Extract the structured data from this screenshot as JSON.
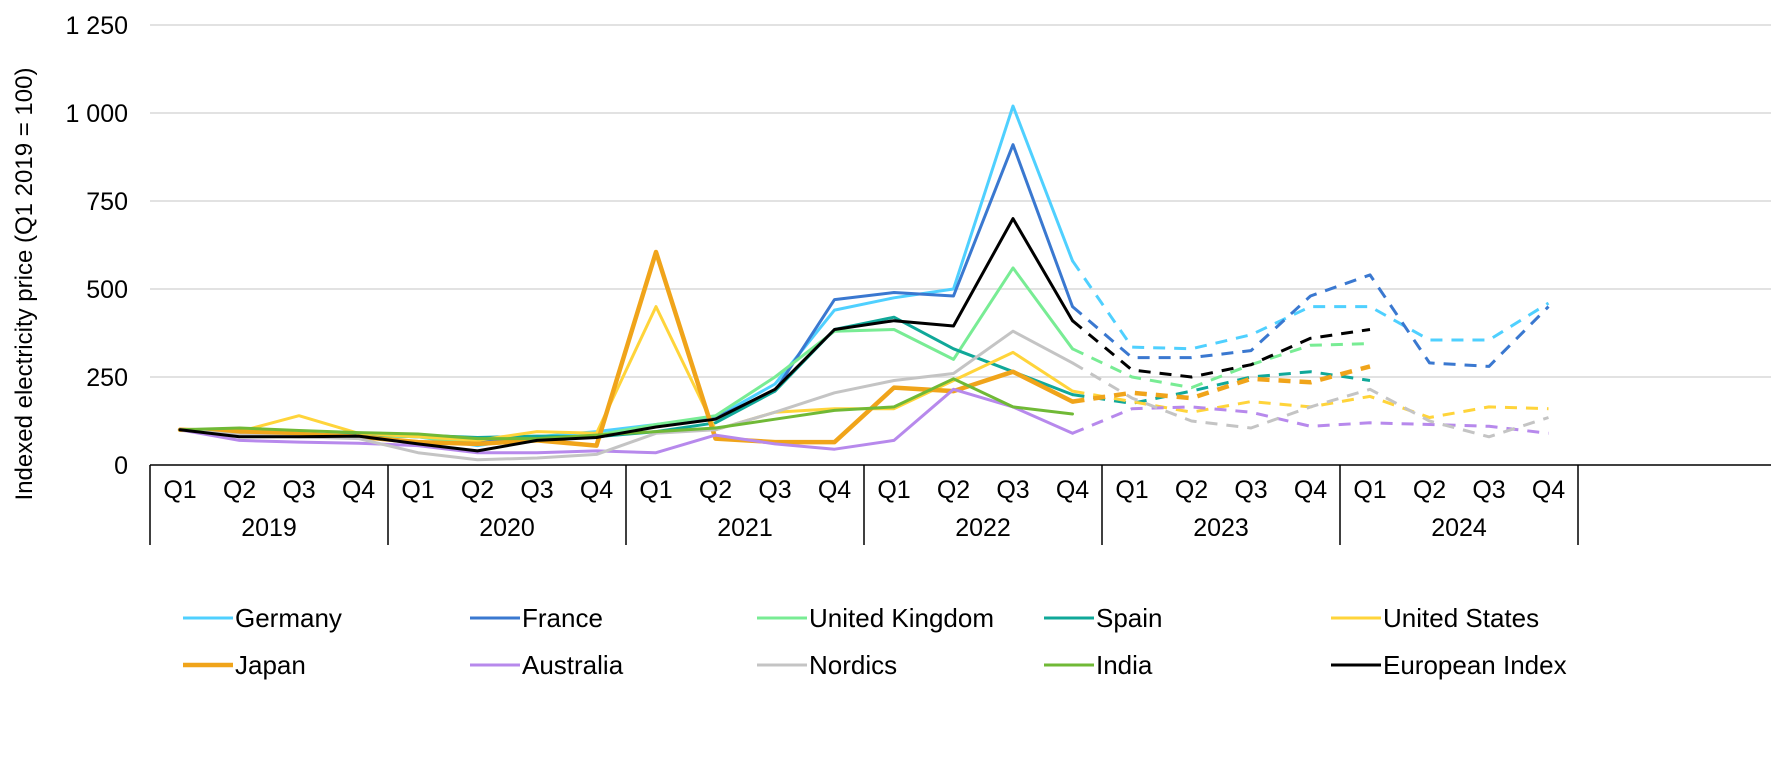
{
  "chart_data": {
    "type": "line",
    "title": "",
    "ylabel": "Indexed electricity price (Q1 2019 = 100)",
    "xlabel": "",
    "ylim": [
      0,
      1250
    ],
    "yticks": [
      {
        "value": 0,
        "label": "0"
      },
      {
        "value": 250,
        "label": "250"
      },
      {
        "value": 500,
        "label": "500"
      },
      {
        "value": 750,
        "label": "750"
      },
      {
        "value": 1000,
        "label": "1 000"
      },
      {
        "value": 1250,
        "label": "1 250"
      }
    ],
    "grid": true,
    "legend_position": "bottom",
    "years": [
      "2019",
      "2020",
      "2021",
      "2022",
      "2023",
      "2024"
    ],
    "quarters": [
      "Q1",
      "Q2",
      "Q3",
      "Q4"
    ],
    "solid_through_index": 15,
    "series": [
      {
        "name": "Germany",
        "color": "#4fd0ff",
        "width": 3,
        "values": [
          100,
          85,
          82,
          85,
          80,
          55,
          80,
          95,
          115,
          135,
          230,
          440,
          475,
          500,
          1020,
          580,
          335,
          330,
          370,
          450,
          450,
          355,
          355,
          460
        ]
      },
      {
        "name": "France",
        "color": "#3a78d0",
        "width": 3,
        "values": [
          100,
          88,
          88,
          85,
          80,
          70,
          75,
          80,
          110,
          135,
          210,
          470,
          490,
          480,
          910,
          450,
          305,
          305,
          325,
          480,
          540,
          290,
          280,
          450
        ]
      },
      {
        "name": "United Kingdom",
        "color": "#78ec94",
        "width": 3,
        "values": [
          100,
          95,
          88,
          85,
          80,
          60,
          70,
          85,
          115,
          140,
          250,
          380,
          385,
          300,
          560,
          330,
          250,
          220,
          285,
          340,
          345,
          null,
          null,
          null
        ]
      },
      {
        "name": "Spain",
        "color": "#10a899",
        "width": 3,
        "values": [
          100,
          95,
          85,
          85,
          85,
          78,
          82,
          80,
          95,
          120,
          210,
          385,
          420,
          330,
          265,
          200,
          175,
          210,
          250,
          265,
          240,
          null,
          null,
          null
        ]
      },
      {
        "name": "United States",
        "color": "#ffd43a",
        "width": 3,
        "values": [
          100,
          95,
          140,
          90,
          80,
          70,
          95,
          90,
          450,
          100,
          150,
          160,
          160,
          240,
          320,
          210,
          180,
          150,
          180,
          165,
          195,
          135,
          165,
          160
        ]
      },
      {
        "name": "Japan",
        "color": "#f0a41a",
        "width": 4.5,
        "values": [
          100,
          95,
          88,
          80,
          65,
          60,
          70,
          55,
          605,
          75,
          65,
          65,
          220,
          210,
          265,
          180,
          205,
          190,
          245,
          235,
          280,
          null,
          null,
          null
        ]
      },
      {
        "name": "Australia",
        "color": "#b789ec",
        "width": 3,
        "values": [
          100,
          70,
          65,
          62,
          55,
          35,
          35,
          40,
          35,
          85,
          60,
          45,
          70,
          215,
          165,
          90,
          160,
          165,
          150,
          110,
          120,
          115,
          110,
          90
        ]
      },
      {
        "name": "Nordics",
        "color": "#c4c4c4",
        "width": 3,
        "values": [
          100,
          85,
          80,
          75,
          35,
          15,
          20,
          30,
          90,
          100,
          150,
          205,
          240,
          260,
          380,
          290,
          190,
          125,
          105,
          165,
          215,
          125,
          80,
          135
        ]
      },
      {
        "name": "India",
        "color": "#70b936",
        "width": 3,
        "values": [
          100,
          105,
          98,
          92,
          88,
          75,
          75,
          85,
          95,
          105,
          130,
          155,
          165,
          245,
          165,
          145,
          null,
          null,
          null,
          null,
          null,
          null,
          null,
          null
        ]
      },
      {
        "name": "European Index",
        "color": "#000000",
        "width": 3,
        "values": [
          100,
          80,
          80,
          82,
          60,
          40,
          70,
          78,
          108,
          130,
          215,
          385,
          410,
          395,
          700,
          410,
          270,
          250,
          285,
          360,
          385,
          null,
          null,
          null
        ]
      }
    ]
  }
}
